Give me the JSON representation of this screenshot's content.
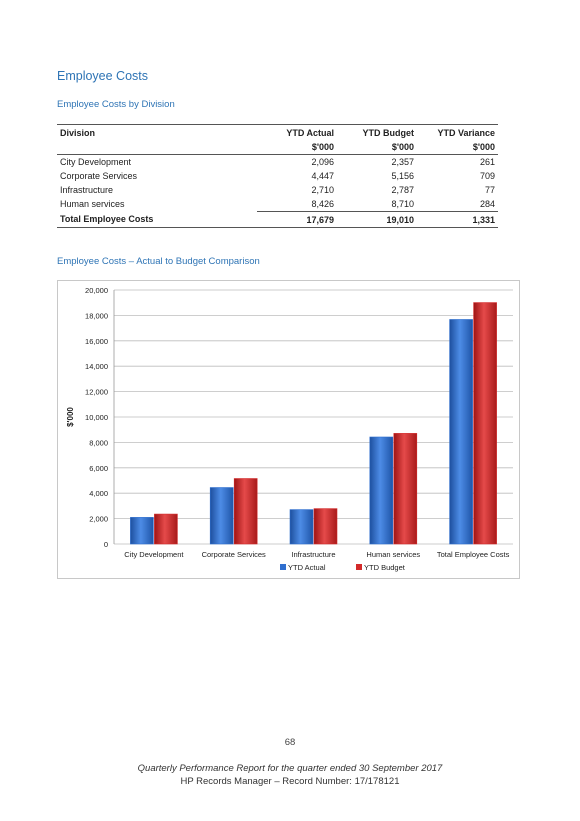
{
  "heading": "Employee Costs",
  "table_title": "Employee Costs by Division",
  "table": {
    "columns": [
      "Division",
      "YTD Actual",
      "YTD Budget",
      "YTD Variance"
    ],
    "units": [
      "",
      "$'000",
      "$'000",
      "$'000"
    ],
    "rows": [
      [
        "City Development",
        "2,096",
        "2,357",
        "261"
      ],
      [
        "Corporate Services",
        "4,447",
        "5,156",
        "709"
      ],
      [
        "Infrastructure",
        "2,710",
        "2,787",
        "77"
      ],
      [
        "Human services",
        "8,426",
        "8,710",
        "284"
      ]
    ],
    "total": [
      "Total Employee Costs",
      "17,679",
      "19,010",
      "1,331"
    ]
  },
  "chart_title": "Employee Costs – Actual to Budget Comparison",
  "chart_data": {
    "type": "bar",
    "categories": [
      "City Development",
      "Corporate Services",
      "Infrastructure",
      "Human services",
      "Total Employee Costs"
    ],
    "series": [
      {
        "name": "YTD Actual",
        "values": [
          2096,
          4447,
          2710,
          8426,
          17679
        ],
        "color": "#2f6fcf"
      },
      {
        "name": "YTD Budget",
        "values": [
          2357,
          5156,
          2787,
          8710,
          19010
        ],
        "color": "#d32a2a"
      }
    ],
    "ylabel": "$'000",
    "ylim": [
      0,
      20000
    ],
    "yticks": [
      "0",
      "2,000",
      "4,000",
      "6,000",
      "8,000",
      "10,000",
      "12,000",
      "14,000",
      "16,000",
      "18,000",
      "20,000"
    ],
    "grid": true,
    "legend": "bottom"
  },
  "page_number": "68",
  "footer": {
    "line1": "Quarterly Performance Report for the quarter ended 30 September 2017",
    "line2": "HP Records Manager – Record Number: 17/178121"
  }
}
